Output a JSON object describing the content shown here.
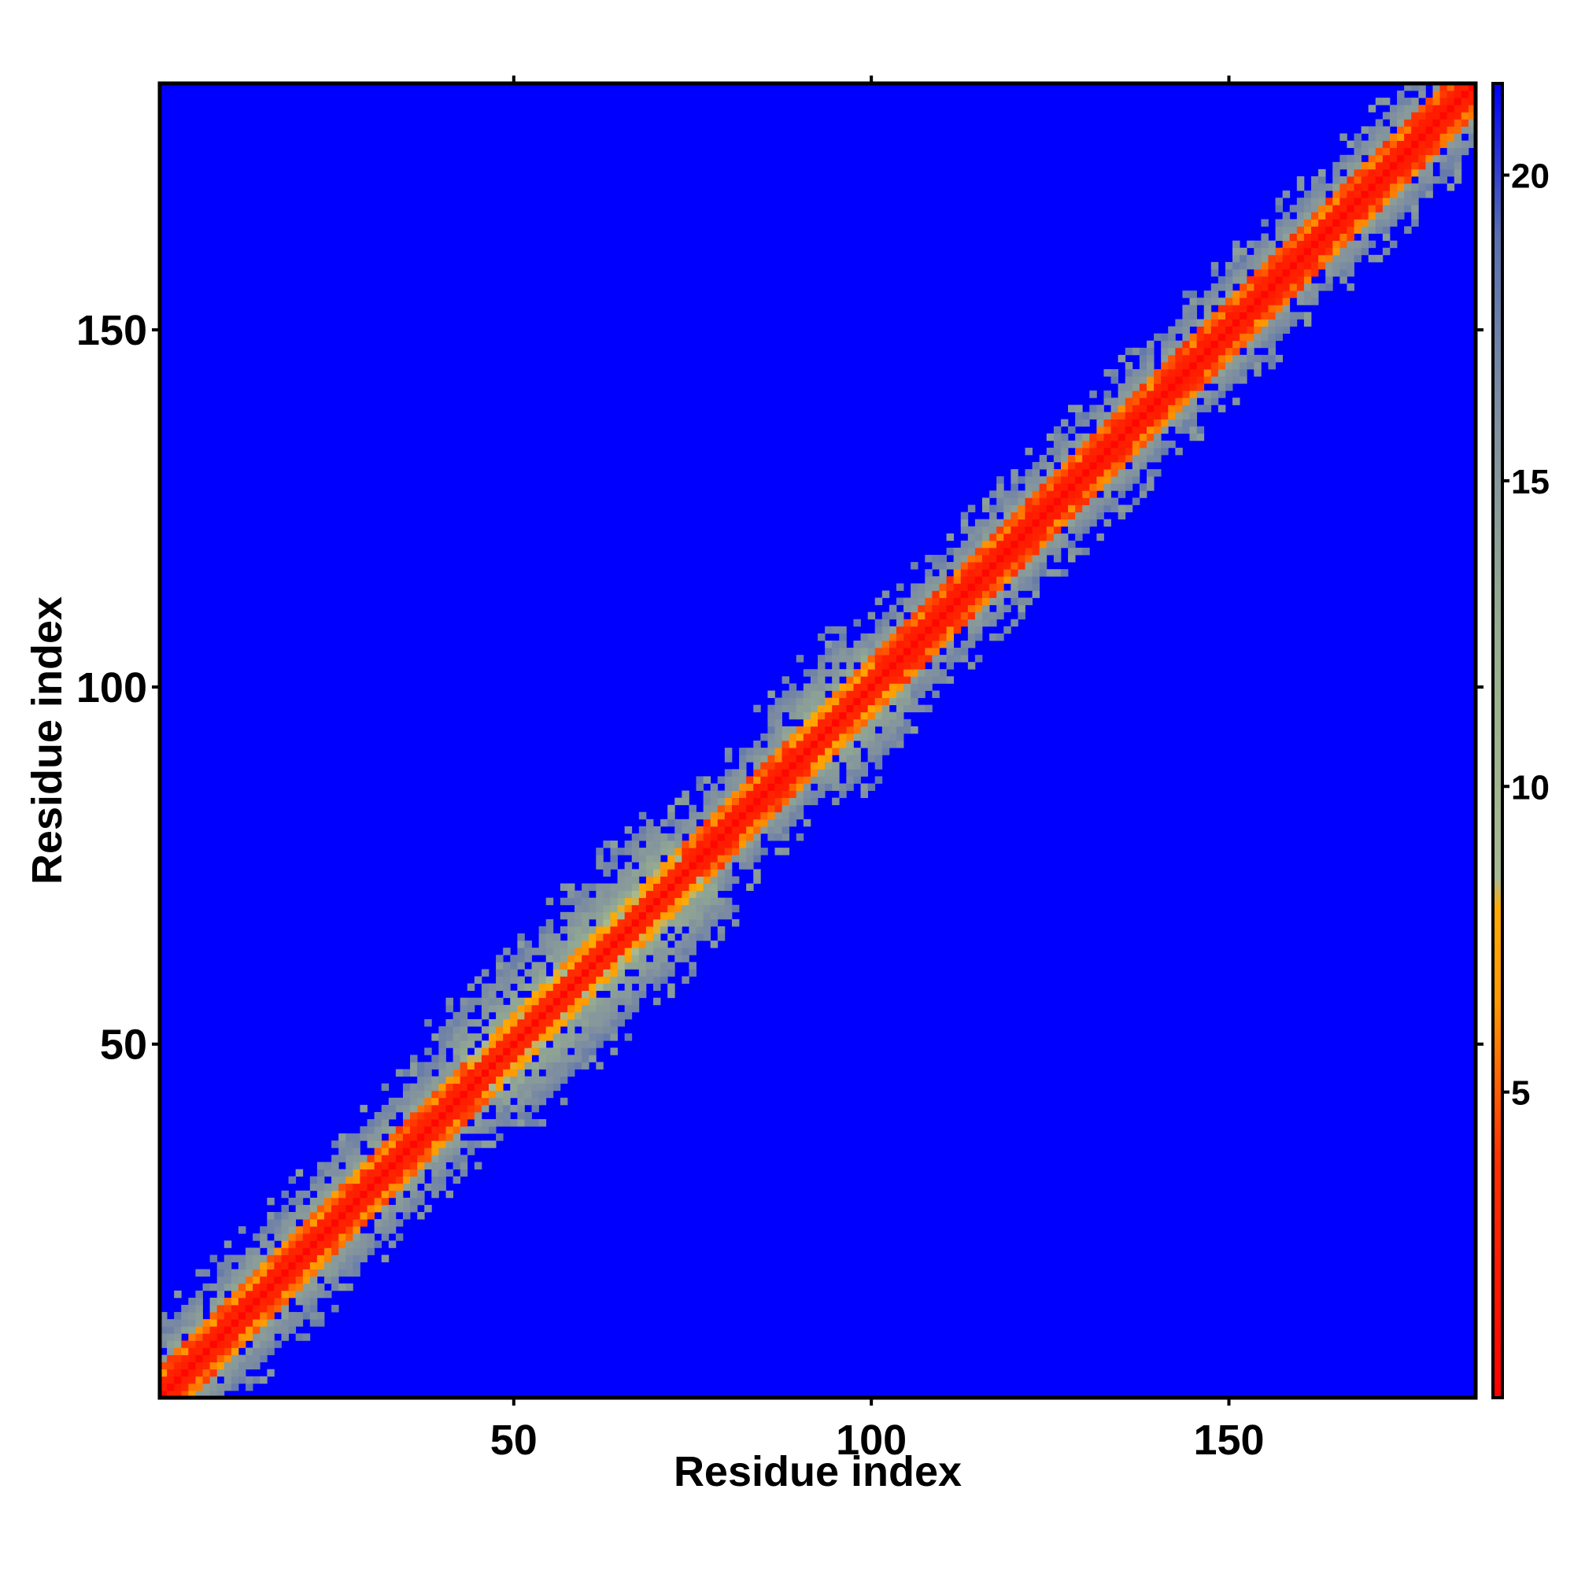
{
  "chart_data": {
    "type": "heatmap",
    "title": "",
    "xlabel": "Residue index",
    "ylabel": "Residue index",
    "n_residues": 184,
    "xlim": [
      1,
      184
    ],
    "ylim": [
      1,
      184
    ],
    "x_ticks": [
      50,
      100,
      150
    ],
    "y_ticks": [
      50,
      100,
      150
    ],
    "colorbar": {
      "range": [
        0,
        21.5
      ],
      "ticks": [
        5,
        10,
        15,
        20
      ],
      "stops": [
        {
          "value": 0,
          "color": "#ff0000"
        },
        {
          "value": 4,
          "color": "#ff3300"
        },
        {
          "value": 6.5,
          "color": "#ff9900"
        },
        {
          "value": 8,
          "color": "#ffaa00"
        },
        {
          "value": 8.5,
          "color": "#a8b890"
        },
        {
          "value": 12,
          "color": "#99b08e"
        },
        {
          "value": 16,
          "color": "#7f8fa0"
        },
        {
          "value": 19,
          "color": "#5870b0"
        },
        {
          "value": 21.5,
          "color": "#0000ff"
        }
      ]
    },
    "background_value": 21.5,
    "band_segments": [
      {
        "start": 1,
        "end": 45,
        "half_width": 9,
        "core": 2.2,
        "mid": 4.0
      },
      {
        "start": 45,
        "end": 75,
        "half_width": 12,
        "core": 2.8,
        "mid": 6.0
      },
      {
        "start": 75,
        "end": 90,
        "half_width": 8,
        "core": 2.0,
        "mid": 3.5
      },
      {
        "start": 90,
        "end": 102,
        "half_width": 11,
        "core": 2.6,
        "mid": 5.0
      },
      {
        "start": 102,
        "end": 184,
        "half_width": 8,
        "core": 2.0,
        "mid": 3.5
      }
    ]
  }
}
